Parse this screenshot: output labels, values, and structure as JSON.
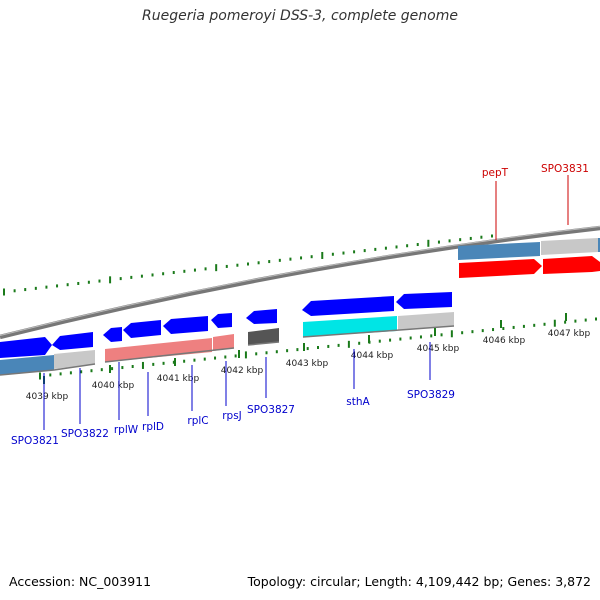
{
  "title": "Ruegeria pomeroyi DSS-3, complete genome",
  "accession": "Accession: NC_003911",
  "topology": "Topology: circular; Length: 4,109,442 bp; Genes: 3,872",
  "colors": {
    "gene_label": "#0000cc",
    "highlight_label": "#cc0000",
    "tick": "#1a7a1a",
    "backbone": "#808080"
  },
  "scale_ticks": [
    {
      "id": "4039",
      "label": "4039 kbp"
    },
    {
      "id": "4040",
      "label": "4040 kbp"
    },
    {
      "id": "4041",
      "label": "4041 kbp"
    },
    {
      "id": "4042",
      "label": "4042 kbp"
    },
    {
      "id": "4043",
      "label": "4043 kbp"
    },
    {
      "id": "4044",
      "label": "4044 kbp"
    },
    {
      "id": "4045",
      "label": "4045 kbp"
    },
    {
      "id": "4046",
      "label": "4046 kbp"
    },
    {
      "id": "4047",
      "label": "4047 kbp"
    }
  ],
  "genes": [
    {
      "id": "spo3821",
      "label": "SPO3821",
      "color": "blue"
    },
    {
      "id": "spo3822",
      "label": "SPO3822",
      "color": "blue"
    },
    {
      "id": "rplw",
      "label": "rplW",
      "color": "blue"
    },
    {
      "id": "rpld",
      "label": "rplD",
      "color": "blue"
    },
    {
      "id": "rplc",
      "label": "rplC",
      "color": "blue"
    },
    {
      "id": "rpsj",
      "label": "rpsJ",
      "color": "blue"
    },
    {
      "id": "spo3827",
      "label": "SPO3827",
      "color": "blue"
    },
    {
      "id": "stha",
      "label": "sthA",
      "color": "blue"
    },
    {
      "id": "spo3829",
      "label": "SPO3829",
      "color": "blue"
    },
    {
      "id": "pept",
      "label": "pepT",
      "color": "red"
    },
    {
      "id": "spo3831",
      "label": "SPO3831",
      "color": "red"
    }
  ]
}
